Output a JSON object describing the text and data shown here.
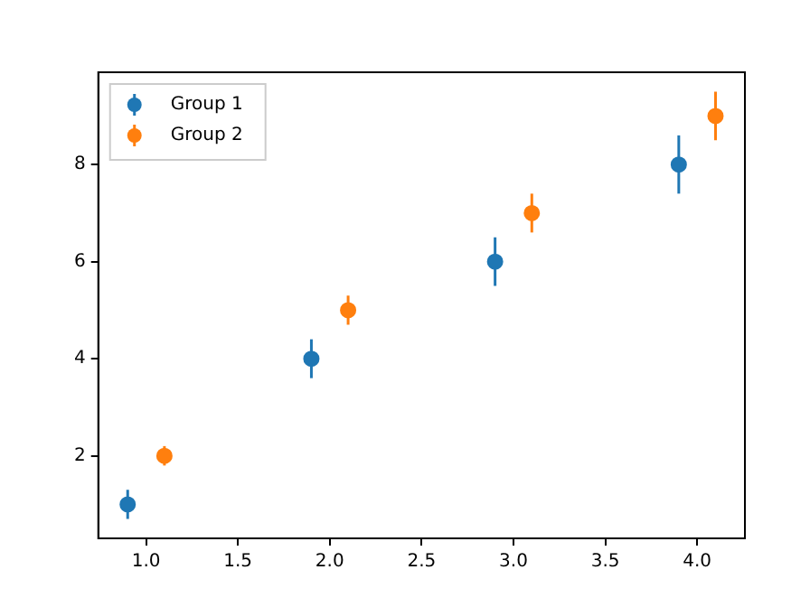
{
  "chart_data": {
    "type": "scatter",
    "marker": "circle",
    "legend": "top left",
    "grid": false,
    "xlim": [
      0.74,
      4.26
    ],
    "xticks": [
      {
        "value": 1,
        "label": "1.0"
      },
      {
        "value": 1.5,
        "label": "1.5"
      },
      {
        "value": 2,
        "label": "2.0"
      },
      {
        "value": 2.5,
        "label": "2.5"
      },
      {
        "value": 3,
        "label": "3.0"
      },
      {
        "value": 3.5,
        "label": "3.5"
      },
      {
        "value": 4,
        "label": "4.0"
      }
    ],
    "ylim": [
      0.3,
      9.9
    ],
    "yticks": [
      2,
      4,
      6,
      8
    ],
    "series": [
      {
        "name": "Group 1",
        "color": "#1f77b4",
        "x": [
          0.9,
          1.9,
          2.9,
          3.9
        ],
        "values": [
          1,
          4,
          6,
          8
        ],
        "errors": [
          0.3,
          0.4,
          0.5,
          0.6
        ]
      },
      {
        "name": "Group 2",
        "color": "#ff7f0e",
        "x": [
          1.1,
          2.1,
          3.1,
          4.1
        ],
        "values": [
          2,
          5,
          7,
          9
        ],
        "errors": [
          0.2,
          0.3,
          0.4,
          0.5
        ]
      }
    ]
  }
}
